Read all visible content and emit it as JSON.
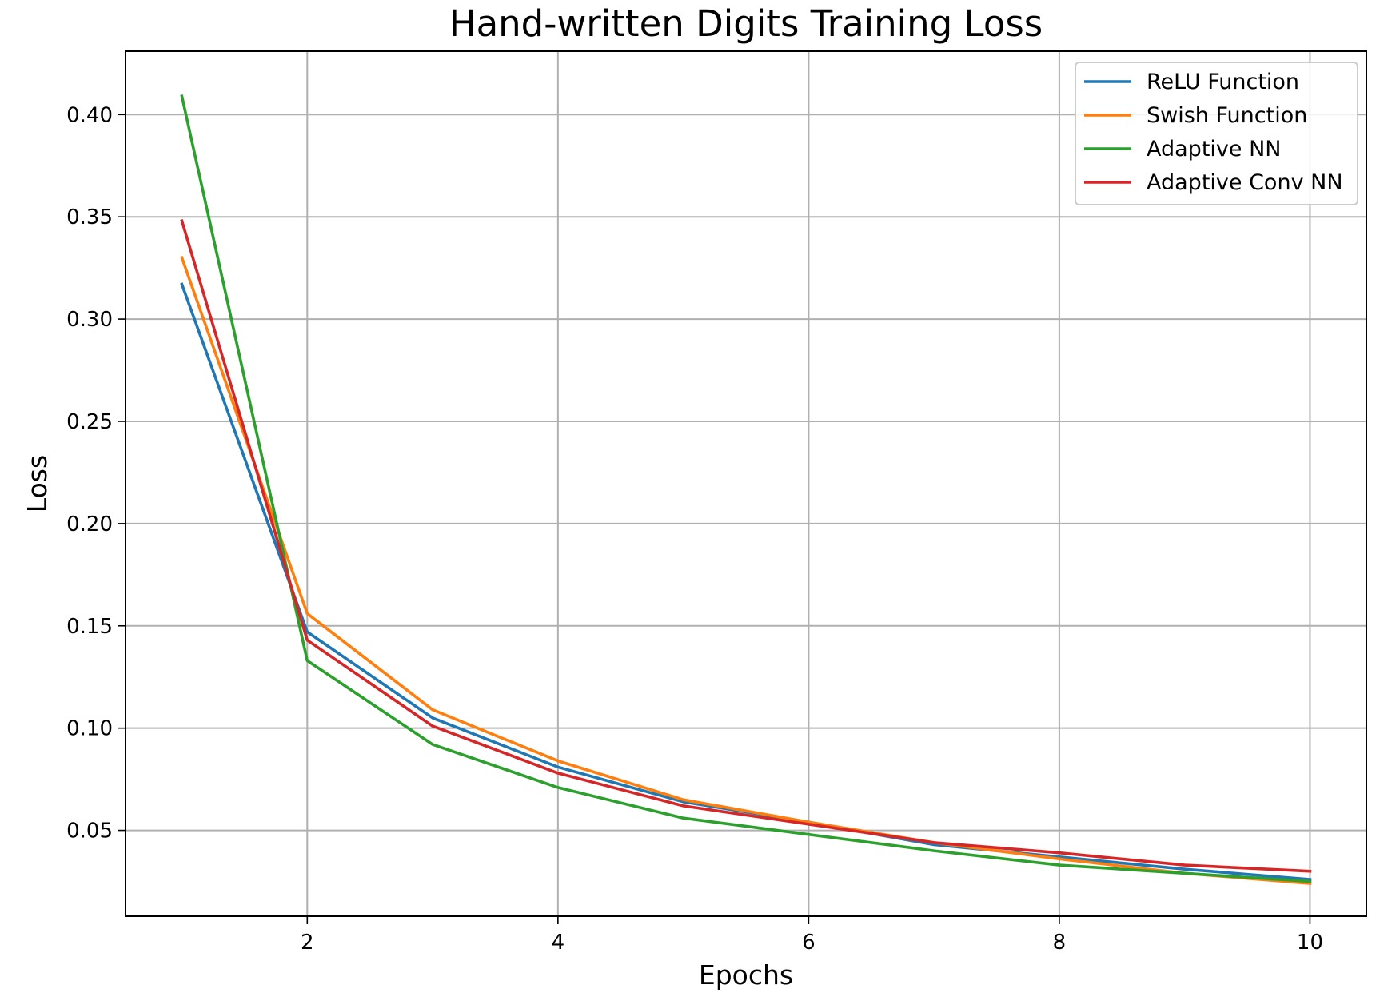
{
  "chart_data": {
    "type": "line",
    "title": "Hand-written Digits Training Loss",
    "xlabel": "Epochs",
    "ylabel": "Loss",
    "x": [
      1,
      2,
      3,
      4,
      5,
      6,
      7,
      8,
      9,
      10
    ],
    "xlim": [
      0.55,
      10.45
    ],
    "ylim": [
      0.008,
      0.431
    ],
    "xticks": [
      2,
      4,
      6,
      8,
      10
    ],
    "yticks": [
      0.05,
      0.1,
      0.15,
      0.2,
      0.25,
      0.3,
      0.35,
      0.4
    ],
    "ytick_labels": [
      "0.05",
      "0.10",
      "0.15",
      "0.20",
      "0.25",
      "0.30",
      "0.35",
      "0.40"
    ],
    "grid": true,
    "legend_position": "top-right",
    "series": [
      {
        "name": "ReLU Function",
        "color": "#1f77b4",
        "values": [
          0.317,
          0.147,
          0.105,
          0.081,
          0.064,
          0.054,
          0.043,
          0.037,
          0.031,
          0.026
        ]
      },
      {
        "name": "Swish Function",
        "color": "#ff7f0e",
        "values": [
          0.33,
          0.156,
          0.109,
          0.084,
          0.065,
          0.054,
          0.044,
          0.036,
          0.029,
          0.024
        ]
      },
      {
        "name": "Adaptive NN",
        "color": "#2ca02c",
        "values": [
          0.409,
          0.133,
          0.092,
          0.071,
          0.056,
          0.048,
          0.04,
          0.033,
          0.029,
          0.025
        ]
      },
      {
        "name": "Adaptive Conv NN",
        "color": "#d62728",
        "values": [
          0.348,
          0.143,
          0.101,
          0.078,
          0.062,
          0.053,
          0.044,
          0.039,
          0.033,
          0.03
        ]
      }
    ]
  }
}
